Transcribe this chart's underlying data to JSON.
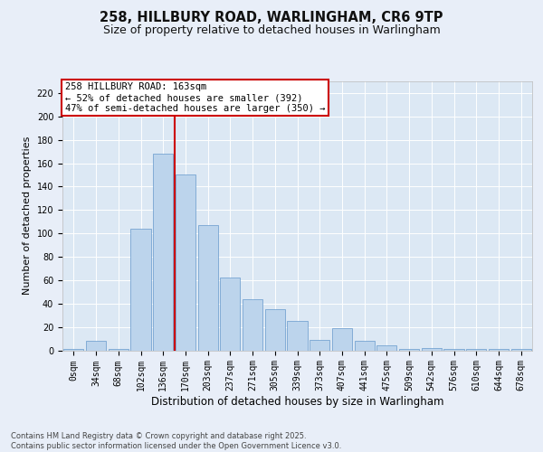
{
  "title1": "258, HILLBURY ROAD, WARLINGHAM, CR6 9TP",
  "title2": "Size of property relative to detached houses in Warlingham",
  "xlabel": "Distribution of detached houses by size in Warlingham",
  "ylabel": "Number of detached properties",
  "bar_labels": [
    "0sqm",
    "34sqm",
    "68sqm",
    "102sqm",
    "136sqm",
    "170sqm",
    "203sqm",
    "237sqm",
    "271sqm",
    "305sqm",
    "339sqm",
    "373sqm",
    "407sqm",
    "441sqm",
    "475sqm",
    "509sqm",
    "542sqm",
    "576sqm",
    "610sqm",
    "644sqm",
    "678sqm"
  ],
  "bar_values": [
    1,
    8,
    1,
    104,
    168,
    150,
    107,
    62,
    44,
    35,
    25,
    9,
    19,
    8,
    4,
    1,
    2,
    1,
    1,
    1,
    1
  ],
  "bar_color": "#bcd4ec",
  "bar_edge_color": "#6699cc",
  "vline_color": "#cc0000",
  "annotation_line1": "258 HILLBURY ROAD: 163sqm",
  "annotation_line2": "← 52% of detached houses are smaller (392)",
  "annotation_line3": "47% of semi-detached houses are larger (350) →",
  "annotation_box_color": "#ffffff",
  "annotation_box_edge": "#cc0000",
  "ylim": [
    0,
    230
  ],
  "yticks": [
    0,
    20,
    40,
    60,
    80,
    100,
    120,
    140,
    160,
    180,
    200,
    220
  ],
  "background_color": "#e8eef8",
  "plot_bg_color": "#dce8f4",
  "footer": "Contains HM Land Registry data © Crown copyright and database right 2025.\nContains public sector information licensed under the Open Government Licence v3.0.",
  "title1_fontsize": 10.5,
  "title2_fontsize": 9,
  "xlabel_fontsize": 8.5,
  "ylabel_fontsize": 8,
  "tick_fontsize": 7,
  "annotation_fontsize": 7.5,
  "footer_fontsize": 6
}
